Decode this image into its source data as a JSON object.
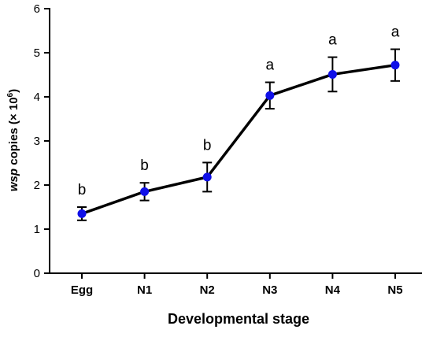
{
  "chart_data": {
    "type": "line",
    "categories": [
      "Egg",
      "N1",
      "N2",
      "N3",
      "N4",
      "N5"
    ],
    "values": [
      1.35,
      1.85,
      2.18,
      4.03,
      4.51,
      4.72
    ],
    "errors": [
      0.15,
      0.2,
      0.33,
      0.3,
      0.39,
      0.36
    ],
    "significance": [
      "b",
      "b",
      "b",
      "a",
      "a",
      "a"
    ],
    "ylim": [
      0,
      6
    ],
    "yticks": [
      "0",
      "1",
      "2",
      "3",
      "4",
      "5",
      "6"
    ],
    "ylabel_italic": "wsp",
    "ylabel_rest": " copies (× 10",
    "ylabel_exp": "6",
    "ylabel_close": ")",
    "xlabel": "Developmental stage",
    "line_color": "#000000",
    "marker_color": "#1010e8",
    "grid": false,
    "legend": "none"
  }
}
